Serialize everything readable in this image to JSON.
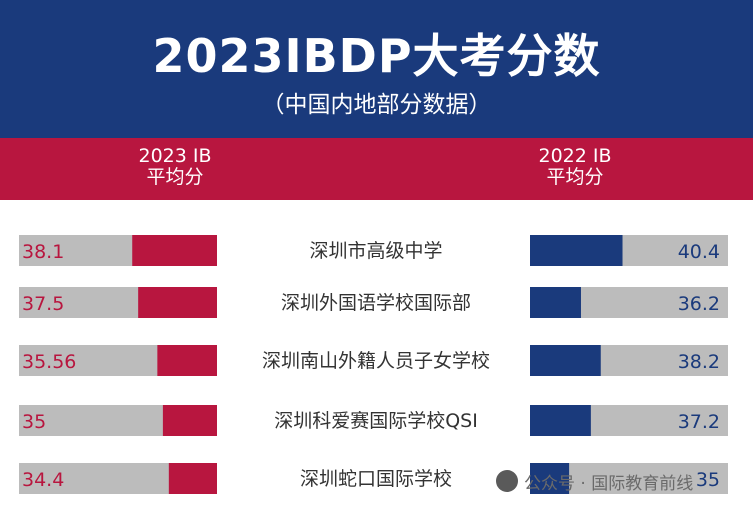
{
  "title": "2023IBDP大考分数",
  "subtitle": "（中国内地部分数据）",
  "left_header": [
    "2023 IB",
    "平均分"
  ],
  "right_header": [
    "2022 IB",
    "平均分"
  ],
  "watermark": "公众号 · 国际教育前线",
  "colors": {
    "red": "#b8163f",
    "navy": "#1a3a7c",
    "gray": "#bcbcbc"
  },
  "chart_data": {
    "type": "bar",
    "categories": [
      "深圳市高级中学",
      "深圳外国语学校国际部",
      "深圳南山外籍人员子女学校",
      "深圳科爱赛国际学校QSI",
      "深圳蛇口国际学校"
    ],
    "series": [
      {
        "name": "2023 IB 平均分",
        "values": [
          38.1,
          37.5,
          35.56,
          35,
          34.4
        ],
        "labels": [
          "38.1",
          "37.5",
          "35.56",
          "35",
          "34.4"
        ]
      },
      {
        "name": "2022 IB 平均分",
        "values": [
          40.4,
          36.2,
          38.2,
          37.2,
          35
        ],
        "labels": [
          "40.4",
          "36.2",
          "38.2",
          "37.2",
          "35"
        ]
      }
    ],
    "ylim": [
      0,
      45
    ],
    "legend": "top"
  }
}
